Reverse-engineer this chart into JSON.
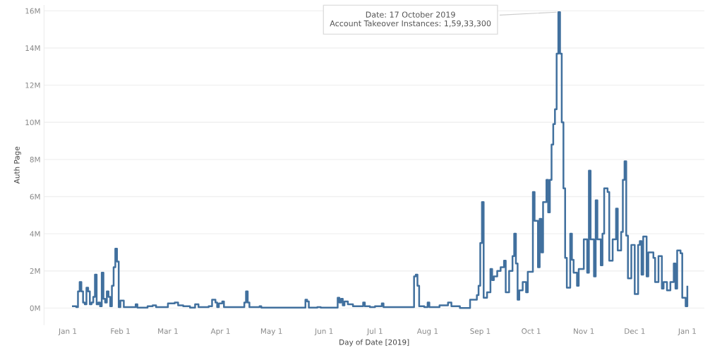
{
  "chart_data": {
    "type": "step",
    "xlabel": "Day of Date [2019]",
    "ylabel": "Auth Page",
    "x": [
      "2019-01-04",
      "2019-01-06",
      "2019-01-07",
      "2019-01-08",
      "2019-01-09",
      "2019-01-10",
      "2019-01-11",
      "2019-01-12",
      "2019-01-13",
      "2019-01-14",
      "2019-01-15",
      "2019-01-16",
      "2019-01-17",
      "2019-01-18",
      "2019-01-19",
      "2019-01-20",
      "2019-01-21",
      "2019-01-22",
      "2019-01-23",
      "2019-01-24",
      "2019-01-25",
      "2019-01-26",
      "2019-01-27",
      "2019-01-28",
      "2019-01-29",
      "2019-01-30",
      "2019-01-31",
      "2019-02-01",
      "2019-02-03",
      "2019-02-10",
      "2019-02-11",
      "2019-02-17",
      "2019-02-20",
      "2019-02-22",
      "2019-02-27",
      "2019-03-01",
      "2019-03-05",
      "2019-03-07",
      "2019-03-10",
      "2019-03-14",
      "2019-03-17",
      "2019-03-19",
      "2019-03-25",
      "2019-03-27",
      "2019-03-29",
      "2019-03-30",
      "2019-03-31",
      "2019-04-02",
      "2019-04-03",
      "2019-04-08",
      "2019-04-15",
      "2019-04-16",
      "2019-04-17",
      "2019-04-18",
      "2019-04-24",
      "2019-04-25",
      "2019-05-21",
      "2019-05-22",
      "2019-05-23",
      "2019-05-28",
      "2019-05-30",
      "2019-06-09",
      "2019-06-10",
      "2019-06-11",
      "2019-06-12",
      "2019-06-13",
      "2019-06-15",
      "2019-06-18",
      "2019-06-23",
      "2019-06-24",
      "2019-06-25",
      "2019-06-28",
      "2019-07-01",
      "2019-07-05",
      "2019-07-06",
      "2019-07-15",
      "2019-07-24",
      "2019-07-25",
      "2019-07-26",
      "2019-07-27",
      "2019-07-30",
      "2019-08-01",
      "2019-08-02",
      "2019-08-08",
      "2019-08-13",
      "2019-08-15",
      "2019-08-20",
      "2019-08-26",
      "2019-08-30",
      "2019-08-31",
      "2019-09-01",
      "2019-09-02",
      "2019-09-03",
      "2019-09-05",
      "2019-09-07",
      "2019-09-08",
      "2019-09-09",
      "2019-09-11",
      "2019-09-13",
      "2019-09-15",
      "2019-09-16",
      "2019-09-18",
      "2019-09-20",
      "2019-09-21",
      "2019-09-22",
      "2019-09-23",
      "2019-09-24",
      "2019-09-26",
      "2019-09-28",
      "2019-09-29",
      "2019-10-02",
      "2019-10-03",
      "2019-10-05",
      "2019-10-06",
      "2019-10-07",
      "2019-10-08",
      "2019-10-10",
      "2019-10-11",
      "2019-10-12",
      "2019-10-13",
      "2019-10-14",
      "2019-10-15",
      "2019-10-16",
      "2019-10-17",
      "2019-10-18",
      "2019-10-19",
      "2019-10-20",
      "2019-10-21",
      "2019-10-22",
      "2019-10-24",
      "2019-10-25",
      "2019-10-26",
      "2019-10-28",
      "2019-10-29",
      "2019-11-01",
      "2019-11-03",
      "2019-11-04",
      "2019-11-05",
      "2019-11-07",
      "2019-11-08",
      "2019-11-09",
      "2019-11-11",
      "2019-11-12",
      "2019-11-13",
      "2019-11-15",
      "2019-11-16",
      "2019-11-18",
      "2019-11-20",
      "2019-11-21",
      "2019-11-23",
      "2019-11-24",
      "2019-11-25",
      "2019-11-26",
      "2019-11-27",
      "2019-11-29",
      "2019-12-01",
      "2019-12-03",
      "2019-12-04",
      "2019-12-05",
      "2019-12-06",
      "2019-12-08",
      "2019-12-09",
      "2019-12-12",
      "2019-12-13",
      "2019-12-15",
      "2019-12-17",
      "2019-12-18",
      "2019-12-20",
      "2019-12-22",
      "2019-12-24",
      "2019-12-25",
      "2019-12-26",
      "2019-12-28",
      "2019-12-29",
      "2019-12-31",
      "2020-01-01"
    ],
    "series": [
      {
        "color": "#41709e",
        "values": [
          0.1,
          0.05,
          0.9,
          1.4,
          0.9,
          0.3,
          0.2,
          1.1,
          0.9,
          0.2,
          0.3,
          0.6,
          1.8,
          0.2,
          0.3,
          0.1,
          1.9,
          0.5,
          0.3,
          0.9,
          0.6,
          0.1,
          1.2,
          2.2,
          3.2,
          2.5,
          0.05,
          0.4,
          0.05,
          0.2,
          0.02,
          0.1,
          0.15,
          0.05,
          0.05,
          0.25,
          0.3,
          0.15,
          0.1,
          0.02,
          0.2,
          0.05,
          0.1,
          0.45,
          0.3,
          0.05,
          0.25,
          0.35,
          0.05,
          0.05,
          0.3,
          0.9,
          0.3,
          0.05,
          0.1,
          0.02,
          0.45,
          0.35,
          0.02,
          0.05,
          0.02,
          0.55,
          0.3,
          0.5,
          0.15,
          0.35,
          0.2,
          0.1,
          0.1,
          0.3,
          0.1,
          0.05,
          0.1,
          0.25,
          0.05,
          0.05,
          1.7,
          1.8,
          1.2,
          0.1,
          0.05,
          0.3,
          0.05,
          0.15,
          0.3,
          0.1,
          0.0,
          0.45,
          0.7,
          1.2,
          3.5,
          5.7,
          0.55,
          0.85,
          2.1,
          1.5,
          1.7,
          2.0,
          2.2,
          2.55,
          0.85,
          2.0,
          2.8,
          4.0,
          2.4,
          0.45,
          0.95,
          1.4,
          0.85,
          1.95,
          6.25,
          4.7,
          2.2,
          4.8,
          3.0,
          5.7,
          6.9,
          5.15,
          6.9,
          8.8,
          9.9,
          10.7,
          13.7,
          15.9333,
          13.7,
          10.0,
          6.45,
          2.7,
          1.1,
          4.0,
          2.6,
          1.9,
          1.2,
          2.1,
          3.7,
          1.9,
          7.4,
          3.7,
          1.7,
          5.8,
          3.7,
          2.3,
          4.0,
          6.45,
          6.25,
          2.55,
          3.7,
          5.35,
          3.1,
          4.1,
          6.9,
          7.9,
          3.9,
          1.6,
          3.4,
          0.75,
          3.4,
          3.6,
          1.8,
          3.85,
          1.7,
          3.0,
          2.7,
          1.4,
          2.8,
          1.05,
          1.4,
          0.95,
          1.4,
          2.4,
          1.05,
          3.1,
          2.95,
          0.55,
          0.1,
          1.15
        ]
      }
    ],
    "xlim": [
      "2018-12-18",
      "2020-01-11"
    ],
    "xticks": [
      {
        "value": "2019-01-01",
        "label": "Jan 1"
      },
      {
        "value": "2019-02-01",
        "label": "Feb 1"
      },
      {
        "value": "2019-03-01",
        "label": "Mar 1"
      },
      {
        "value": "2019-04-01",
        "label": "Apr 1"
      },
      {
        "value": "2019-05-01",
        "label": "May 1"
      },
      {
        "value": "2019-06-01",
        "label": "Jun 1"
      },
      {
        "value": "2019-07-01",
        "label": "Jul 1"
      },
      {
        "value": "2019-08-01",
        "label": "Aug 1"
      },
      {
        "value": "2019-09-01",
        "label": "Sep 1"
      },
      {
        "value": "2019-10-01",
        "label": "Oct 1"
      },
      {
        "value": "2019-11-01",
        "label": "Nov 1"
      },
      {
        "value": "2019-12-01",
        "label": "Dec 1"
      },
      {
        "value": "2020-01-01",
        "label": "Jan 1"
      }
    ],
    "ylim": [
      -0.9,
      16.3
    ],
    "yticks": [
      {
        "value": 0,
        "label": "0M"
      },
      {
        "value": 2,
        "label": "2M"
      },
      {
        "value": 4,
        "label": "4M"
      },
      {
        "value": 6,
        "label": "6M"
      },
      {
        "value": 8,
        "label": "8M"
      },
      {
        "value": 10,
        "label": "10M"
      },
      {
        "value": 12,
        "label": "12M"
      },
      {
        "value": 14,
        "label": "14M"
      },
      {
        "value": 16,
        "label": "16M"
      }
    ],
    "grid": "y",
    "annotations": [
      {
        "text": "Date: 17 October 2019\nAccount Takeover Instances: 1,59,33,300",
        "x": "2019-10-17",
        "y": 15.9333
      }
    ]
  }
}
